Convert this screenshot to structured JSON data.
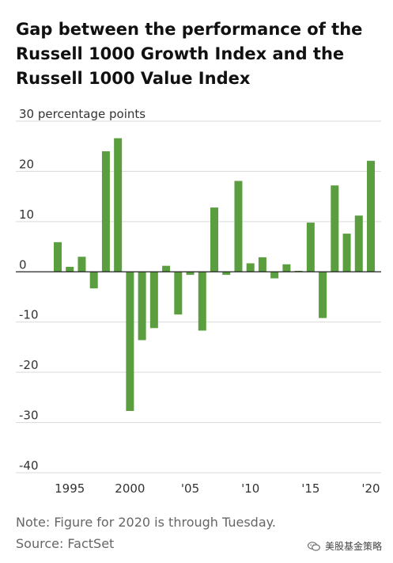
{
  "chart_data": {
    "type": "bar",
    "title": "Gap between the performance of the Russell 1000 Growth Index and the Russell 1000 Value Index",
    "unit_label": "30 percentage points",
    "ylim": [
      -40,
      30
    ],
    "yticks": [
      -40,
      -30,
      -20,
      -10,
      0,
      10,
      20,
      30
    ],
    "ytick_labels": [
      "-40",
      "-30",
      "-20",
      "-10",
      "0",
      "10",
      "20",
      "30 percentage points"
    ],
    "x": [
      1994,
      1995,
      1996,
      1997,
      1998,
      1999,
      2000,
      2001,
      2002,
      2003,
      2004,
      2005,
      2006,
      2007,
      2008,
      2009,
      2010,
      2011,
      2012,
      2013,
      2014,
      2015,
      2016,
      2017,
      2018,
      2019,
      2020
    ],
    "values": [
      5.9,
      1.0,
      3.0,
      -3.3,
      24.0,
      26.6,
      -27.7,
      -13.6,
      -11.2,
      1.2,
      -8.5,
      -0.6,
      -11.7,
      12.8,
      -0.6,
      18.1,
      1.7,
      2.9,
      -1.3,
      1.5,
      0.2,
      9.8,
      -9.2,
      17.2,
      7.6,
      11.2,
      22.1
    ],
    "xtick_labels": [
      {
        "year": 1995,
        "label": "1995"
      },
      {
        "year": 2000,
        "label": "2000"
      },
      {
        "year": 2005,
        "label": "'05"
      },
      {
        "year": 2010,
        "label": "'10"
      },
      {
        "year": 2015,
        "label": "'15"
      },
      {
        "year": 2020,
        "label": "'20"
      }
    ],
    "bar_color": "#5a9e3f",
    "grid_color": "#d9d9d9",
    "zero_line_color": "#222222",
    "grid": true
  },
  "notes": {
    "note": "Note: Figure for 2020 is through Tuesday.",
    "source": "Source: FactSet"
  },
  "watermark": {
    "text": "美股基金策略",
    "icon": "wechat-icon"
  }
}
